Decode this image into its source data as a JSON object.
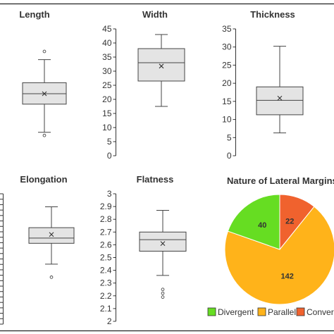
{
  "chart_data": [
    {
      "type": "box",
      "title": "Length",
      "stats": {
        "min": 8.3,
        "q1": 18.3,
        "median": 22.0,
        "q3": 25.9,
        "max": 34.1,
        "mean": 22.0,
        "outliers": [
          37.0,
          7.2
        ]
      },
      "ylim": [
        0,
        45
      ]
    },
    {
      "type": "box",
      "title": "Width",
      "yticks": [
        "0",
        "5",
        "10",
        "15",
        "20",
        "25",
        "30",
        "35",
        "40",
        "45"
      ],
      "stats": {
        "min": 17.5,
        "q1": 26.5,
        "median": 33.0,
        "q3": 38.0,
        "max": 43.0,
        "mean": 31.8,
        "outliers": []
      },
      "ylim": [
        0,
        45
      ]
    },
    {
      "type": "box",
      "title": "Thickness",
      "yticks": [
        "0",
        "5",
        "10",
        "15",
        "20",
        "25",
        "30",
        "35"
      ],
      "stats": {
        "min": 6.3,
        "q1": 11.3,
        "median": 15.3,
        "q3": 19.0,
        "max": 30.2,
        "mean": 15.9,
        "outliers": []
      },
      "ylim": [
        0,
        35
      ]
    },
    {
      "type": "box",
      "title": "Elongation",
      "stats": {
        "min": 1.15,
        "q1": 1.55,
        "median": 1.65,
        "q3": 1.85,
        "max": 2.25,
        "mean": 1.72,
        "outliers": [
          0.9
        ]
      },
      "ylim": [
        0,
        2.5
      ]
    },
    {
      "type": "box",
      "title": "Flatness",
      "yticks": [
        "2",
        "2.1",
        "2.2",
        "2.3",
        "2.4",
        "2.5",
        "2.6",
        "2.7",
        "2.8",
        "2.9",
        "3"
      ],
      "stats": {
        "min": 2.36,
        "q1": 2.55,
        "median": 2.64,
        "q3": 2.7,
        "max": 2.87,
        "mean": 2.61,
        "outliers": [
          2.25,
          2.22,
          2.19
        ]
      },
      "ylim": [
        2,
        3
      ]
    },
    {
      "type": "pie",
      "title": "Nature of Lateral Margins",
      "slices": [
        {
          "name": "Convergent",
          "value": 22,
          "color": "#f0622e"
        },
        {
          "name": "Parallel",
          "value": 142,
          "color": "#ffb31a"
        },
        {
          "name": "Divergent",
          "value": 40,
          "color": "#66dd22"
        }
      ],
      "legend_labels": [
        "Divergent",
        "Parallel",
        "Convergent"
      ],
      "legend_colors": [
        "#66dd22",
        "#ffb31a",
        "#f0622e"
      ],
      "legend_placement": "bottom"
    }
  ]
}
